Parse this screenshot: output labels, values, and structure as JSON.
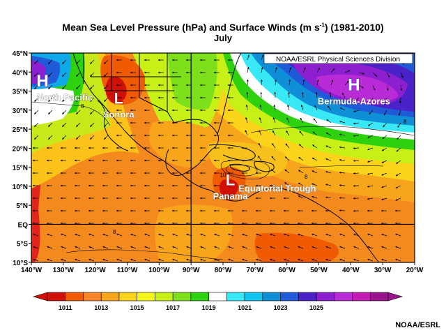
{
  "title": {
    "line1_prefix": "Mean Sea Level Pressure (hPa) and Surface Winds (m s",
    "line1_sup": "-1",
    "line1_suffix": ") (1981-2010)",
    "line2": "July"
  },
  "source_label": "NOAA/ESRL Physical Sciences Division",
  "credit": "NOAA/ESRL",
  "extent": {
    "lon": [
      -140,
      -20
    ],
    "lat": [
      -10,
      45
    ]
  },
  "lat_ticks": [
    "45°N",
    "40°N",
    "35°N",
    "30°N",
    "25°N",
    "20°N",
    "15°N",
    "10°N",
    "5°N",
    "EQ",
    "5°S",
    "10°S"
  ],
  "lon_ticks": [
    "140°W",
    "130°W",
    "120°W",
    "110°W",
    "100°W",
    "90°W",
    "80°W",
    "70°W",
    "60°W",
    "50°W",
    "40°W",
    "30°W",
    "20°W"
  ],
  "reference_lines": {
    "lon": -90,
    "lat": 0
  },
  "pressure_systems": [
    {
      "symbol": "H",
      "name": "North Pacific",
      "lon": -140,
      "lat": 35.5
    },
    {
      "symbol": "L",
      "name": "Sonora",
      "lon": -114,
      "lat": 31
    },
    {
      "symbol": "H",
      "name": "Bermuda-Azores",
      "lon": -39,
      "lat": 34.5
    },
    {
      "symbol": "L",
      "name": "Panama",
      "lon": -79,
      "lat": 9.5
    }
  ],
  "feature_labels": [
    {
      "text": "Equatorial Trough",
      "lon": -63,
      "lat": 9.5
    }
  ],
  "contour_labels": [
    {
      "text": "8",
      "lon": -124,
      "lat": 30.5
    },
    {
      "text": "8",
      "lon": -23,
      "lat": 26.5
    },
    {
      "text": "8",
      "lon": -54,
      "lat": 12
    },
    {
      "text": "10",
      "lon": -80,
      "lat": 12.5
    },
    {
      "text": "8",
      "lon": -114,
      "lat": -2.5
    }
  ],
  "colorbar": {
    "labels": [
      "1011",
      "1013",
      "1015",
      "1017",
      "1019",
      "1021",
      "1023",
      "1025"
    ],
    "colors": [
      "#d11008",
      "#f05a00",
      "#f9862a",
      "#f7a51b",
      "#fbd31a",
      "#f2f61a",
      "#c6f016",
      "#7ee01a",
      "#2dd10e",
      "#ffffff",
      "#38e8f5",
      "#0ec5ef",
      "#0f8fd8",
      "#1f5bd8",
      "#4a22c8",
      "#8e1fd0",
      "#b82bd6",
      "#c41cb5",
      "#99138e"
    ]
  }
}
